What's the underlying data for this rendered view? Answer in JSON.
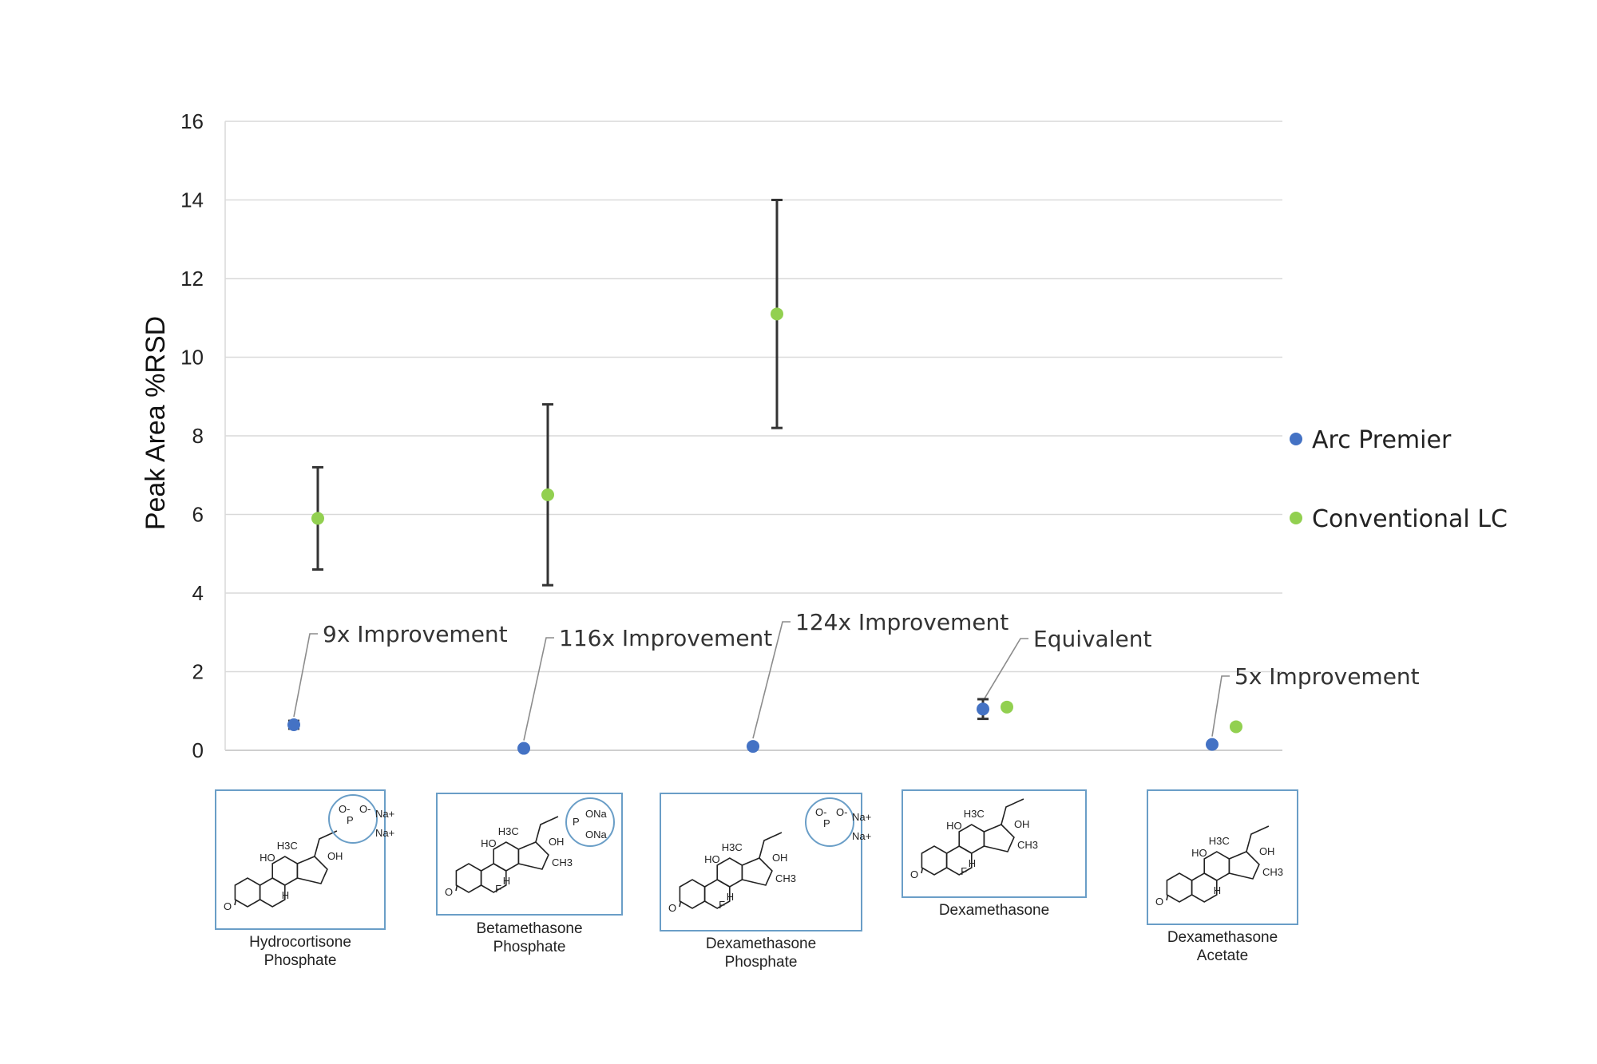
{
  "chart_data": {
    "type": "scatter",
    "ylabel": "Peak Area %RSD",
    "ylim": [
      0,
      16
    ],
    "yticks": [
      "0",
      "2",
      "4",
      "6",
      "8",
      "10",
      "12",
      "14",
      "16"
    ],
    "grid": true,
    "legend_position": "right",
    "categories": [
      "Hydrocortisone Phosphate",
      "Betamethasone Phosphate",
      "Dexamethasone Phosphate",
      "Dexamethasone",
      "Dexamethasone Acetate"
    ],
    "series": [
      {
        "name": "Arc Premier",
        "color": "#4472c4",
        "values": [
          0.65,
          0.05,
          0.1,
          1.05,
          0.15
        ],
        "error": [
          0.1,
          0,
          0,
          0.25,
          0
        ]
      },
      {
        "name": "Conventional LC",
        "color": "#92d050",
        "values": [
          5.9,
          6.5,
          11.1,
          1.1,
          0.6
        ],
        "error": [
          1.3,
          2.3,
          2.9,
          0.05,
          0
        ]
      }
    ],
    "annotations": [
      {
        "text": "9x Improvement",
        "category": 0
      },
      {
        "text": "116x Improvement",
        "category": 1
      },
      {
        "text": "124x Improvement",
        "category": 2
      },
      {
        "text": "Equivalent",
        "category": 3
      },
      {
        "text": "5x Improvement",
        "category": 4
      }
    ]
  },
  "structure_labels": [
    [
      "Hydrocortisone",
      "Phosphate"
    ],
    [
      "Betamethasone",
      "Phosphate"
    ],
    [
      "Dexamethasone",
      "Phosphate"
    ],
    [
      "Dexamethasone"
    ],
    [
      "Dexamethasone",
      "Acetate"
    ]
  ],
  "structure_atoms": [
    "O",
    "HO",
    "H",
    "H3C",
    "OH",
    "F",
    "CH3",
    "Na+",
    "O-",
    "P",
    "ONa"
  ]
}
